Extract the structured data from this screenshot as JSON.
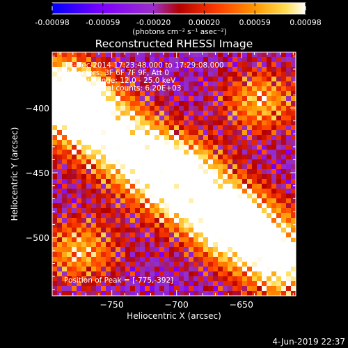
{
  "colorbar": {
    "ticks": [
      "-0.00098",
      "-0.00059",
      "-0.00020",
      "0.00020",
      "0.00059",
      "0.00098"
    ],
    "tick_values": [
      -0.00098,
      -0.00059,
      -0.0002,
      0.0002,
      0.00059,
      0.00098
    ],
    "units_label": "(photons cm⁻² s⁻¹ asec⁻²)",
    "colors": [
      "#0000ff",
      "#7f00ff",
      "#9b30c8",
      "#b40000",
      "#ff3c00",
      "#ff9600",
      "#ffdc50",
      "#ffffff"
    ]
  },
  "chart_data": {
    "type": "heatmap",
    "title": "Reconstructed RHESSI Image",
    "xlabel": "Heliocentric X (arcsec)",
    "ylabel": "Heliocentric Y (arcsec)",
    "xlim": [
      -796,
      -608
    ],
    "ylim": [
      -545,
      -357
    ],
    "x_ticks": [
      -750,
      -700,
      -650
    ],
    "y_ticks": [
      -400,
      -450,
      -500
    ],
    "annotations": {
      "time": "13-Dec-2014 17:23:48.000 to 17:29:08.000",
      "detectors": "Detectors: 3F 6F 7F 9F, Att 0",
      "energy": "Energy Range: 12.0 - 25.0 keV",
      "counts": "Clean     Total counts: 6.20E+03",
      "peak": "Position of Peak = [-775,-392]"
    },
    "peak_position": [
      -775,
      -392
    ],
    "value_range": [
      -0.00098,
      0.00098
    ]
  },
  "footer": {
    "date": "4-Jun-2019 22:37"
  }
}
